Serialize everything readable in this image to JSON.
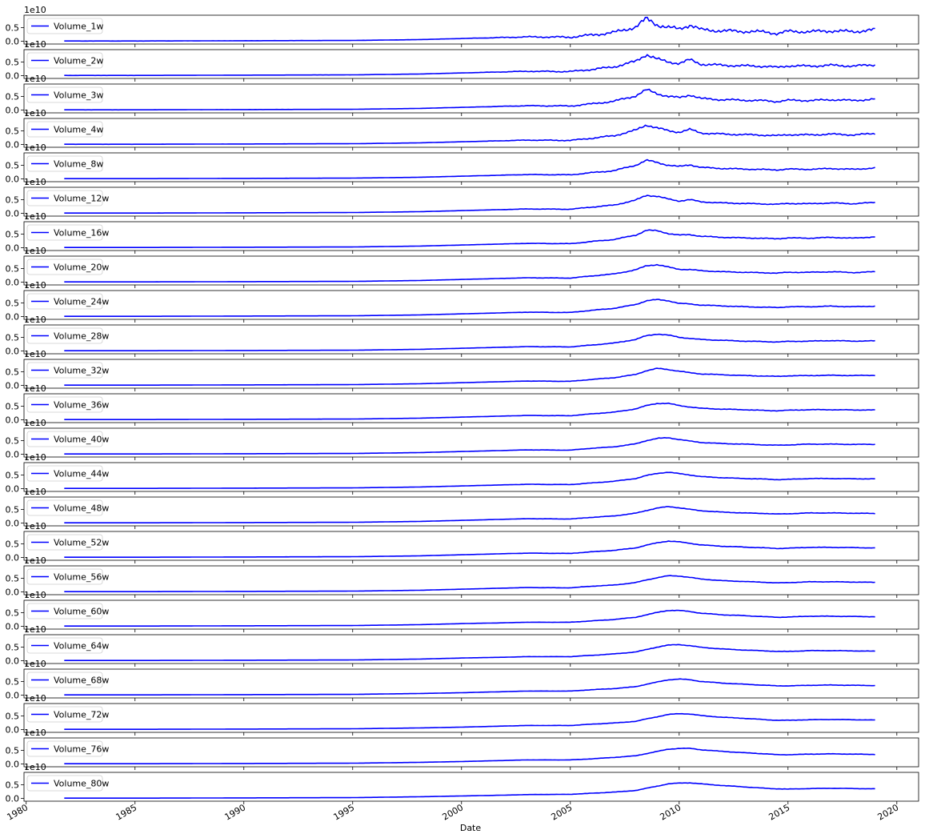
{
  "chart_data": {
    "type": "line",
    "subplots": 24,
    "shared_x": true,
    "xlabel": "Date",
    "ylabel": "",
    "x_ticks": [
      "1980",
      "1985",
      "1990",
      "1995",
      "2000",
      "2005",
      "2010",
      "2015",
      "2020"
    ],
    "y_ticks": [
      "0.0",
      "0.5"
    ],
    "y_offset_label": "1e10",
    "xlim": [
      1979.9,
      2021.0
    ],
    "ylim": [
      -0.1,
      0.95
    ],
    "legend_position": "upper left",
    "line_color": "#0000ff",
    "grid": false,
    "x": [
      1981.75,
      1985,
      1990,
      1995,
      1998,
      2000,
      2002,
      2003,
      2005,
      2006,
      2007,
      2008,
      2008.5,
      2009,
      2009.5,
      2010,
      2010.5,
      2011,
      2012,
      2013,
      2014,
      2014.5,
      2015,
      2016,
      2017,
      2018,
      2019
    ],
    "series": [
      {
        "name": "Volume_1w",
        "window_weeks": 1,
        "values": [
          0.01,
          0.01,
          0.02,
          0.03,
          0.06,
          0.1,
          0.14,
          0.16,
          0.15,
          0.23,
          0.32,
          0.52,
          0.82,
          0.6,
          0.5,
          0.45,
          0.6,
          0.42,
          0.38,
          0.36,
          0.34,
          0.28,
          0.36,
          0.35,
          0.38,
          0.35,
          0.42
        ]
      },
      {
        "name": "Volume_2w",
        "window_weeks": 2,
        "values": [
          0.01,
          0.01,
          0.02,
          0.03,
          0.06,
          0.1,
          0.14,
          0.16,
          0.15,
          0.23,
          0.32,
          0.52,
          0.78,
          0.6,
          0.5,
          0.45,
          0.58,
          0.42,
          0.38,
          0.36,
          0.34,
          0.3,
          0.36,
          0.35,
          0.38,
          0.35,
          0.4
        ]
      },
      {
        "name": "Volume_3w",
        "window_weeks": 3,
        "values": [
          0.01,
          0.01,
          0.02,
          0.03,
          0.06,
          0.1,
          0.14,
          0.16,
          0.15,
          0.23,
          0.32,
          0.52,
          0.74,
          0.6,
          0.5,
          0.45,
          0.56,
          0.42,
          0.38,
          0.36,
          0.34,
          0.31,
          0.36,
          0.35,
          0.38,
          0.35,
          0.4
        ]
      },
      {
        "name": "Volume_4w",
        "window_weeks": 4,
        "values": [
          0.01,
          0.01,
          0.02,
          0.03,
          0.06,
          0.1,
          0.14,
          0.16,
          0.15,
          0.23,
          0.32,
          0.52,
          0.72,
          0.6,
          0.5,
          0.45,
          0.55,
          0.42,
          0.38,
          0.36,
          0.34,
          0.32,
          0.36,
          0.35,
          0.38,
          0.35,
          0.4
        ]
      },
      {
        "name": "Volume_8w",
        "window_weeks": 8,
        "values": [
          0.01,
          0.01,
          0.02,
          0.03,
          0.06,
          0.1,
          0.14,
          0.16,
          0.15,
          0.23,
          0.3,
          0.5,
          0.68,
          0.6,
          0.5,
          0.45,
          0.52,
          0.42,
          0.38,
          0.36,
          0.34,
          0.33,
          0.36,
          0.35,
          0.38,
          0.35,
          0.4
        ]
      },
      {
        "name": "Volume_12w",
        "window_weeks": 12,
        "values": [
          0.01,
          0.01,
          0.02,
          0.03,
          0.06,
          0.1,
          0.14,
          0.16,
          0.15,
          0.23,
          0.3,
          0.48,
          0.66,
          0.62,
          0.52,
          0.45,
          0.5,
          0.42,
          0.38,
          0.36,
          0.34,
          0.33,
          0.36,
          0.35,
          0.38,
          0.35,
          0.4
        ]
      },
      {
        "name": "Volume_16w",
        "window_weeks": 16,
        "values": [
          0.01,
          0.01,
          0.02,
          0.03,
          0.06,
          0.1,
          0.14,
          0.16,
          0.15,
          0.23,
          0.3,
          0.46,
          0.64,
          0.62,
          0.52,
          0.46,
          0.48,
          0.42,
          0.38,
          0.36,
          0.34,
          0.33,
          0.36,
          0.35,
          0.38,
          0.35,
          0.4
        ]
      },
      {
        "name": "Volume_20w",
        "window_weeks": 20,
        "values": [
          0.01,
          0.01,
          0.02,
          0.03,
          0.06,
          0.1,
          0.14,
          0.16,
          0.15,
          0.23,
          0.3,
          0.45,
          0.6,
          0.64,
          0.55,
          0.47,
          0.46,
          0.42,
          0.38,
          0.36,
          0.34,
          0.33,
          0.36,
          0.36,
          0.38,
          0.35,
          0.38
        ]
      },
      {
        "name": "Volume_24w",
        "window_weeks": 24,
        "values": [
          0.01,
          0.01,
          0.02,
          0.03,
          0.06,
          0.1,
          0.14,
          0.16,
          0.15,
          0.23,
          0.3,
          0.44,
          0.58,
          0.62,
          0.58,
          0.48,
          0.46,
          0.42,
          0.39,
          0.36,
          0.34,
          0.33,
          0.36,
          0.36,
          0.38,
          0.36,
          0.38
        ]
      },
      {
        "name": "Volume_28w",
        "window_weeks": 28,
        "values": [
          0.01,
          0.01,
          0.02,
          0.03,
          0.06,
          0.1,
          0.14,
          0.16,
          0.15,
          0.22,
          0.29,
          0.42,
          0.56,
          0.62,
          0.58,
          0.5,
          0.46,
          0.42,
          0.39,
          0.36,
          0.34,
          0.33,
          0.35,
          0.36,
          0.38,
          0.36,
          0.37
        ]
      },
      {
        "name": "Volume_32w",
        "window_weeks": 32,
        "values": [
          0.01,
          0.01,
          0.02,
          0.03,
          0.06,
          0.1,
          0.14,
          0.16,
          0.15,
          0.22,
          0.28,
          0.4,
          0.54,
          0.62,
          0.58,
          0.52,
          0.46,
          0.42,
          0.39,
          0.36,
          0.34,
          0.33,
          0.35,
          0.36,
          0.37,
          0.36,
          0.37
        ]
      },
      {
        "name": "Volume_36w",
        "window_weeks": 36,
        "values": [
          0.01,
          0.01,
          0.02,
          0.03,
          0.06,
          0.1,
          0.14,
          0.16,
          0.15,
          0.22,
          0.28,
          0.4,
          0.52,
          0.6,
          0.6,
          0.52,
          0.47,
          0.42,
          0.39,
          0.37,
          0.34,
          0.33,
          0.35,
          0.37,
          0.37,
          0.36,
          0.36
        ]
      },
      {
        "name": "Volume_40w",
        "window_weeks": 40,
        "values": [
          0.01,
          0.01,
          0.02,
          0.03,
          0.06,
          0.1,
          0.14,
          0.16,
          0.15,
          0.22,
          0.27,
          0.38,
          0.5,
          0.58,
          0.6,
          0.54,
          0.48,
          0.43,
          0.39,
          0.37,
          0.34,
          0.33,
          0.34,
          0.37,
          0.37,
          0.36,
          0.36
        ]
      },
      {
        "name": "Volume_44w",
        "window_weeks": 44,
        "values": [
          0.01,
          0.01,
          0.02,
          0.03,
          0.06,
          0.1,
          0.14,
          0.16,
          0.15,
          0.21,
          0.27,
          0.37,
          0.48,
          0.56,
          0.6,
          0.55,
          0.5,
          0.44,
          0.4,
          0.37,
          0.35,
          0.33,
          0.34,
          0.37,
          0.37,
          0.36,
          0.36
        ]
      },
      {
        "name": "Volume_48w",
        "window_weeks": 48,
        "values": [
          0.01,
          0.01,
          0.02,
          0.03,
          0.06,
          0.1,
          0.14,
          0.16,
          0.15,
          0.21,
          0.26,
          0.36,
          0.46,
          0.55,
          0.6,
          0.56,
          0.5,
          0.45,
          0.4,
          0.37,
          0.35,
          0.33,
          0.34,
          0.37,
          0.37,
          0.36,
          0.35
        ]
      },
      {
        "name": "Volume_52w",
        "window_weeks": 52,
        "values": [
          0.01,
          0.01,
          0.02,
          0.03,
          0.06,
          0.1,
          0.14,
          0.16,
          0.15,
          0.21,
          0.26,
          0.35,
          0.45,
          0.54,
          0.6,
          0.57,
          0.52,
          0.46,
          0.41,
          0.38,
          0.35,
          0.33,
          0.34,
          0.37,
          0.37,
          0.36,
          0.35
        ]
      },
      {
        "name": "Volume_56w",
        "window_weeks": 56,
        "values": [
          0.01,
          0.01,
          0.02,
          0.03,
          0.06,
          0.1,
          0.14,
          0.16,
          0.15,
          0.21,
          0.25,
          0.34,
          0.44,
          0.52,
          0.59,
          0.58,
          0.53,
          0.47,
          0.41,
          0.38,
          0.35,
          0.33,
          0.34,
          0.37,
          0.37,
          0.36,
          0.35
        ]
      },
      {
        "name": "Volume_60w",
        "window_weeks": 60,
        "values": [
          0.01,
          0.01,
          0.02,
          0.03,
          0.06,
          0.1,
          0.13,
          0.15,
          0.15,
          0.2,
          0.25,
          0.33,
          0.42,
          0.51,
          0.58,
          0.58,
          0.54,
          0.48,
          0.42,
          0.39,
          0.35,
          0.33,
          0.34,
          0.37,
          0.37,
          0.36,
          0.35
        ]
      },
      {
        "name": "Volume_64w",
        "window_weeks": 64,
        "values": [
          0.01,
          0.01,
          0.02,
          0.03,
          0.06,
          0.1,
          0.13,
          0.15,
          0.15,
          0.2,
          0.25,
          0.32,
          0.41,
          0.5,
          0.57,
          0.59,
          0.55,
          0.49,
          0.43,
          0.39,
          0.36,
          0.34,
          0.34,
          0.37,
          0.37,
          0.36,
          0.35
        ]
      },
      {
        "name": "Volume_68w",
        "window_weeks": 68,
        "values": [
          0.01,
          0.01,
          0.02,
          0.03,
          0.06,
          0.09,
          0.13,
          0.15,
          0.15,
          0.2,
          0.24,
          0.31,
          0.4,
          0.48,
          0.56,
          0.59,
          0.56,
          0.5,
          0.44,
          0.4,
          0.36,
          0.34,
          0.34,
          0.36,
          0.37,
          0.36,
          0.35
        ]
      },
      {
        "name": "Volume_72w",
        "window_weeks": 72,
        "values": [
          0.01,
          0.01,
          0.02,
          0.03,
          0.06,
          0.09,
          0.13,
          0.15,
          0.15,
          0.2,
          0.24,
          0.3,
          0.39,
          0.47,
          0.55,
          0.58,
          0.57,
          0.51,
          0.45,
          0.41,
          0.36,
          0.34,
          0.34,
          0.36,
          0.37,
          0.36,
          0.35
        ]
      },
      {
        "name": "Volume_76w",
        "window_weeks": 76,
        "values": [
          0.01,
          0.01,
          0.02,
          0.03,
          0.06,
          0.09,
          0.13,
          0.15,
          0.15,
          0.19,
          0.24,
          0.3,
          0.38,
          0.46,
          0.54,
          0.57,
          0.57,
          0.52,
          0.46,
          0.41,
          0.37,
          0.34,
          0.34,
          0.36,
          0.37,
          0.36,
          0.35
        ]
      },
      {
        "name": "Volume_80w",
        "window_weeks": 80,
        "values": [
          0.01,
          0.01,
          0.02,
          0.03,
          0.06,
          0.09,
          0.12,
          0.14,
          0.15,
          0.19,
          0.23,
          0.29,
          0.37,
          0.45,
          0.53,
          0.56,
          0.57,
          0.53,
          0.47,
          0.42,
          0.37,
          0.35,
          0.34,
          0.36,
          0.37,
          0.36,
          0.35
        ]
      }
    ]
  }
}
